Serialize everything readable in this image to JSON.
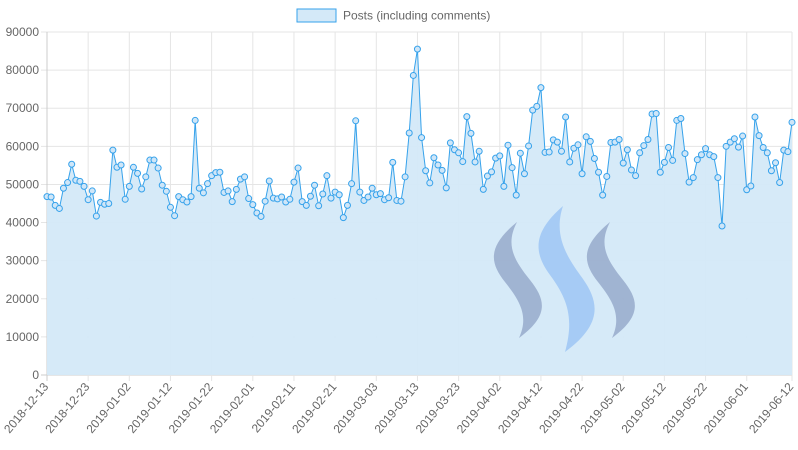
{
  "chart_data": {
    "type": "area",
    "legend": {
      "label": "Posts (including comments)",
      "position": "top-center"
    },
    "colors": {
      "line": "#36a2eb",
      "fill": "#d4e9f8",
      "point_fill": "#cfe6f8",
      "grid": "#e5e5e5",
      "axis_text": "#666666"
    },
    "ylim": [
      0,
      90000
    ],
    "yticks": [
      "0",
      "10000",
      "20000",
      "30000",
      "40000",
      "50000",
      "60000",
      "70000",
      "80000",
      "90000"
    ],
    "xtick_labels": [
      "2018-12-13",
      "2018-12-23",
      "2019-01-02",
      "2019-01-12",
      "2019-01-22",
      "2019-02-01",
      "2019-02-11",
      "2019-02-21",
      "2019-03-03",
      "2019-03-13",
      "2019-03-23",
      "2019-04-02",
      "2019-04-12",
      "2019-04-22",
      "2019-05-02",
      "2019-05-12",
      "2019-05-22",
      "2019-06-01",
      "2019-06-12"
    ],
    "xtick_index": [
      0,
      10,
      20,
      30,
      40,
      50,
      60,
      70,
      80,
      90,
      100,
      110,
      120,
      130,
      140,
      150,
      160,
      170,
      181
    ],
    "values": [
      46800,
      46700,
      44500,
      43700,
      49000,
      50500,
      55300,
      51100,
      50800,
      49500,
      46000,
      48300,
      41700,
      45300,
      44800,
      45000,
      59000,
      54500,
      55100,
      46100,
      49500,
      54500,
      52900,
      48800,
      52000,
      56400,
      56400,
      54300,
      49800,
      48200,
      44000,
      41800,
      46800,
      46000,
      45400,
      46800,
      66800,
      49000,
      47800,
      50200,
      52300,
      53100,
      53200,
      47900,
      48300,
      45500,
      48700,
      51400,
      52000,
      46300,
      44700,
      42500,
      41600,
      45600,
      50900,
      46400,
      46200,
      46700,
      45400,
      46100,
      50600,
      54300,
      45500,
      44500,
      46900,
      49800,
      44400,
      47500,
      52300,
      46400,
      48000,
      47300,
      41300,
      44500,
      50200,
      66700,
      48000,
      45800,
      46700,
      49000,
      47300,
      47600,
      46000,
      46500,
      55800,
      45800,
      45600,
      52000,
      63500,
      78600,
      85500,
      62300,
      53600,
      50400,
      57000,
      55100,
      53700,
      49100,
      60900,
      59100,
      58300,
      56000,
      67800,
      63400,
      55900,
      58700,
      48700,
      52200,
      53300,
      56900,
      57500,
      49500,
      60300,
      54400,
      47200,
      58200,
      52800,
      60100,
      69500,
      70500,
      75400,
      58400,
      58500,
      61700,
      61100,
      58700,
      67700,
      55900,
      59500,
      60400,
      52800,
      62500,
      61300,
      56800,
      53200,
      47200,
      52100,
      61000,
      61100,
      61800,
      55600,
      59100,
      53800,
      52300,
      58300,
      60200,
      61800,
      68500,
      68600,
      53200,
      55800,
      59700,
      56300,
      66800,
      67300,
      58100,
      50600,
      51800,
      56500,
      57800,
      59400,
      57800,
      57300,
      51800,
      39100,
      60000,
      61100,
      62000,
      59800,
      62700,
      48600,
      49600,
      67700,
      62800,
      59700,
      58300,
      53600,
      55700,
      50500,
      59000,
      58600,
      66300
    ]
  }
}
